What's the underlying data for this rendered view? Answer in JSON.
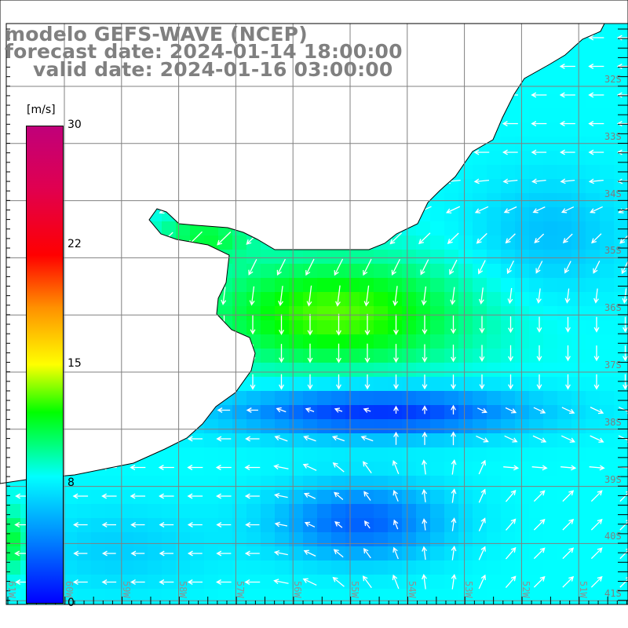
{
  "title": {
    "line1": "modelo GEFS-WAVE (NCEP)",
    "line2": "forecast date: 2024-01-14 18:00:00",
    "line3": "valid date: 2024-01-16 03:00:00"
  },
  "colorbar": {
    "unit": "[m/s]",
    "ticks": [
      "30",
      "22",
      "15",
      "8",
      "0"
    ],
    "range": [
      0,
      30
    ],
    "colors": {
      "0": "#0000ff",
      "8": "#00ffff",
      "15": "#ffff00",
      "22": "#ff0000",
      "30": "#c0007a"
    }
  },
  "lat_labels": [
    "32S",
    "33S",
    "34S",
    "35S",
    "36S",
    "37S",
    "38S",
    "39S",
    "40S",
    "41S"
  ],
  "lon_labels": [
    "61W",
    "60W",
    "59W",
    "58W",
    "57W",
    "56W",
    "55W",
    "54W",
    "53W",
    "52W",
    "51W"
  ],
  "colors": {
    "land": "#ffffff",
    "coastline": "#000000",
    "grid": "#808080",
    "arrows": "#ffffff",
    "title": "#808080"
  }
}
